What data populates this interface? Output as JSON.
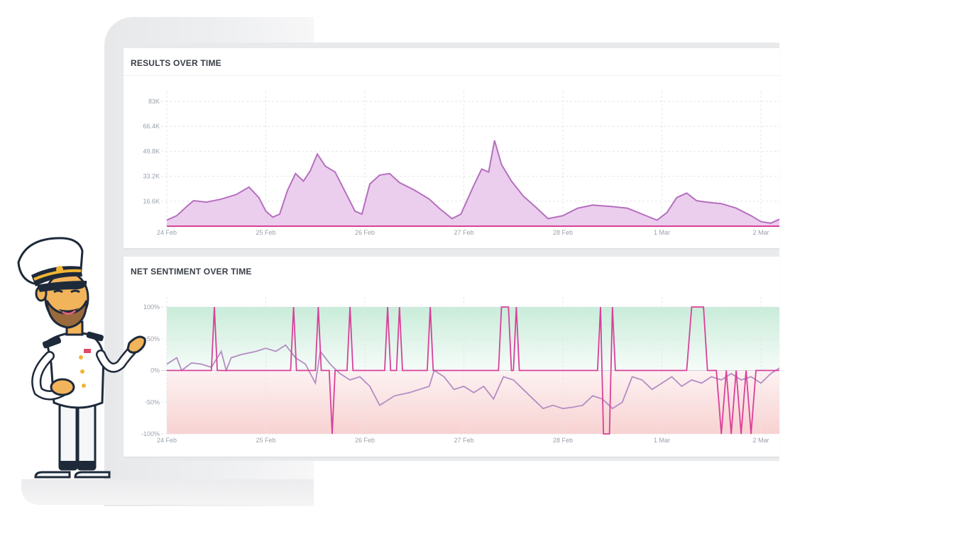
{
  "colors": {
    "accent_pink": "#d9409a",
    "area_fill": "#e7c6ea",
    "area_line": "#b56fbf",
    "sentiment_line": "#b48dc3",
    "positive_band": "#e3f5ec",
    "negative_band": "#fbe3e3"
  },
  "results_card": {
    "title": "RESULTS OVER TIME"
  },
  "sentiment_card": {
    "title": "NET SENTIMENT OVER TIME"
  },
  "chart_data": [
    {
      "type": "area",
      "title": "RESULTS OVER TIME",
      "xlabel": "",
      "ylabel": "",
      "ylim": [
        0,
        83000
      ],
      "y_ticks": [
        "16.6K",
        "33.2K",
        "49.8K",
        "66.4K",
        "83K"
      ],
      "y_tick_values": [
        16600,
        33200,
        49800,
        66400,
        83000
      ],
      "x_ticks": [
        "24 Feb",
        "25 Feb",
        "26 Feb",
        "27 Feb",
        "28 Feb",
        "1 Mar",
        "2 Mar"
      ],
      "x_range_days": [
        0,
        6.2
      ],
      "grid": true,
      "series": [
        {
          "values": [
            [
              0,
              4000
            ],
            [
              0.1,
              7000
            ],
            [
              0.2,
              13000
            ],
            [
              0.27,
              17000
            ],
            [
              0.4,
              16000
            ],
            [
              0.55,
              18000
            ],
            [
              0.7,
              21000
            ],
            [
              0.83,
              26000
            ],
            [
              0.93,
              19000
            ],
            [
              1.0,
              10000
            ],
            [
              1.07,
              6000
            ],
            [
              1.14,
              8000
            ],
            [
              1.22,
              24000
            ],
            [
              1.3,
              35000
            ],
            [
              1.38,
              30000
            ],
            [
              1.45,
              37000
            ],
            [
              1.52,
              48000
            ],
            [
              1.6,
              40000
            ],
            [
              1.7,
              36000
            ],
            [
              1.8,
              23000
            ],
            [
              1.9,
              10000
            ],
            [
              1.97,
              8000
            ],
            [
              2.05,
              28000
            ],
            [
              2.15,
              34000
            ],
            [
              2.25,
              35000
            ],
            [
              2.35,
              29000
            ],
            [
              2.5,
              24000
            ],
            [
              2.65,
              18000
            ],
            [
              2.75,
              12000
            ],
            [
              2.88,
              5000
            ],
            [
              2.97,
              8000
            ],
            [
              3.1,
              27000
            ],
            [
              3.18,
              38000
            ],
            [
              3.25,
              36000
            ],
            [
              3.31,
              57000
            ],
            [
              3.38,
              41000
            ],
            [
              3.48,
              30000
            ],
            [
              3.6,
              20000
            ],
            [
              3.72,
              13000
            ],
            [
              3.85,
              5000
            ],
            [
              4.0,
              7000
            ],
            [
              4.15,
              12000
            ],
            [
              4.3,
              14000
            ],
            [
              4.5,
              13000
            ],
            [
              4.65,
              12000
            ],
            [
              4.8,
              8000
            ],
            [
              4.95,
              4000
            ],
            [
              5.05,
              9000
            ],
            [
              5.15,
              19000
            ],
            [
              5.25,
              22000
            ],
            [
              5.35,
              17000
            ],
            [
              5.45,
              16000
            ],
            [
              5.6,
              15000
            ],
            [
              5.75,
              12000
            ],
            [
              5.9,
              7000
            ],
            [
              6.0,
              3000
            ],
            [
              6.1,
              2000
            ],
            [
              6.2,
              5000
            ]
          ]
        }
      ]
    },
    {
      "type": "line",
      "title": "NET SENTIMENT OVER TIME",
      "xlabel": "",
      "ylabel": "",
      "ylim": [
        -100,
        100
      ],
      "y_ticks": [
        "-100%",
        "-50%",
        "0%",
        "50%",
        "100%"
      ],
      "y_tick_values": [
        -100,
        -50,
        0,
        50,
        100
      ],
      "x_ticks": [
        "24 Feb",
        "25 Feb",
        "26 Feb",
        "27 Feb",
        "28 Feb",
        "1 Mar",
        "2 Mar"
      ],
      "x_range_days": [
        0,
        6.2
      ],
      "grid": true,
      "bands": [
        {
          "from": 0,
          "to": 100,
          "meaning": "positive"
        },
        {
          "from": -100,
          "to": 0,
          "meaning": "negative"
        }
      ],
      "series": [
        {
          "values": [
            [
              0,
              10
            ],
            [
              0.1,
              20
            ],
            [
              0.15,
              0
            ],
            [
              0.25,
              12
            ],
            [
              0.35,
              10
            ],
            [
              0.45,
              5
            ],
            [
              0.55,
              30
            ],
            [
              0.6,
              0
            ],
            [
              0.65,
              20
            ],
            [
              0.75,
              25
            ],
            [
              0.9,
              30
            ],
            [
              1.0,
              35
            ],
            [
              1.1,
              30
            ],
            [
              1.2,
              40
            ],
            [
              1.3,
              20
            ],
            [
              1.4,
              10
            ],
            [
              1.5,
              -20
            ],
            [
              1.55,
              30
            ],
            [
              1.65,
              10
            ],
            [
              1.75,
              -5
            ],
            [
              1.85,
              -15
            ],
            [
              1.95,
              -10
            ],
            [
              2.05,
              -25
            ],
            [
              2.15,
              -55
            ],
            [
              2.3,
              -40
            ],
            [
              2.45,
              -35
            ],
            [
              2.55,
              -30
            ],
            [
              2.65,
              -25
            ],
            [
              2.7,
              0
            ],
            [
              2.8,
              -10
            ],
            [
              2.9,
              -30
            ],
            [
              3.0,
              -25
            ],
            [
              3.1,
              -35
            ],
            [
              3.2,
              -25
            ],
            [
              3.3,
              -45
            ],
            [
              3.4,
              -10
            ],
            [
              3.5,
              -15
            ],
            [
              3.6,
              -30
            ],
            [
              3.7,
              -45
            ],
            [
              3.8,
              -60
            ],
            [
              3.9,
              -55
            ],
            [
              4.0,
              -60
            ],
            [
              4.1,
              -58
            ],
            [
              4.2,
              -55
            ],
            [
              4.3,
              -40
            ],
            [
              4.4,
              -45
            ],
            [
              4.5,
              -60
            ],
            [
              4.6,
              -50
            ],
            [
              4.7,
              -10
            ],
            [
              4.8,
              -15
            ],
            [
              4.9,
              -30
            ],
            [
              5.0,
              -20
            ],
            [
              5.1,
              -10
            ],
            [
              5.2,
              -25
            ],
            [
              5.3,
              -15
            ],
            [
              5.4,
              -20
            ],
            [
              5.5,
              -10
            ],
            [
              5.6,
              -15
            ],
            [
              5.7,
              -5
            ],
            [
              5.8,
              -15
            ],
            [
              5.9,
              -10
            ],
            [
              6.0,
              -20
            ],
            [
              6.1,
              -5
            ],
            [
              6.2,
              5
            ]
          ]
        },
        {
          "values": [
            [
              0,
              0
            ],
            [
              0.45,
              0
            ],
            [
              0.48,
              100
            ],
            [
              0.51,
              0
            ],
            [
              1.25,
              0
            ],
            [
              1.28,
              100
            ],
            [
              1.31,
              0
            ],
            [
              1.5,
              0
            ],
            [
              1.53,
              100
            ],
            [
              1.56,
              0
            ],
            [
              1.64,
              0
            ],
            [
              1.67,
              -100
            ],
            [
              1.7,
              0
            ],
            [
              1.82,
              0
            ],
            [
              1.85,
              100
            ],
            [
              1.88,
              0
            ],
            [
              2.2,
              0
            ],
            [
              2.23,
              100
            ],
            [
              2.26,
              0
            ],
            [
              2.32,
              0
            ],
            [
              2.35,
              100
            ],
            [
              2.38,
              0
            ],
            [
              2.63,
              0
            ],
            [
              2.66,
              100
            ],
            [
              2.69,
              0
            ],
            [
              3.35,
              0
            ],
            [
              3.38,
              100
            ],
            [
              3.45,
              100
            ],
            [
              3.48,
              0
            ],
            [
              3.5,
              0
            ],
            [
              3.53,
              100
            ],
            [
              3.56,
              0
            ],
            [
              4.35,
              0
            ],
            [
              4.38,
              100
            ],
            [
              4.41,
              -100
            ],
            [
              4.47,
              -100
            ],
            [
              4.5,
              100
            ],
            [
              4.53,
              0
            ],
            [
              5.25,
              0
            ],
            [
              5.3,
              100
            ],
            [
              5.42,
              100
            ],
            [
              5.46,
              0
            ],
            [
              5.55,
              0
            ],
            [
              5.6,
              -100
            ],
            [
              5.65,
              0
            ],
            [
              5.7,
              -100
            ],
            [
              5.75,
              0
            ],
            [
              5.8,
              -100
            ],
            [
              5.85,
              0
            ],
            [
              5.9,
              -100
            ],
            [
              5.95,
              0
            ],
            [
              6.2,
              0
            ]
          ]
        }
      ]
    }
  ]
}
